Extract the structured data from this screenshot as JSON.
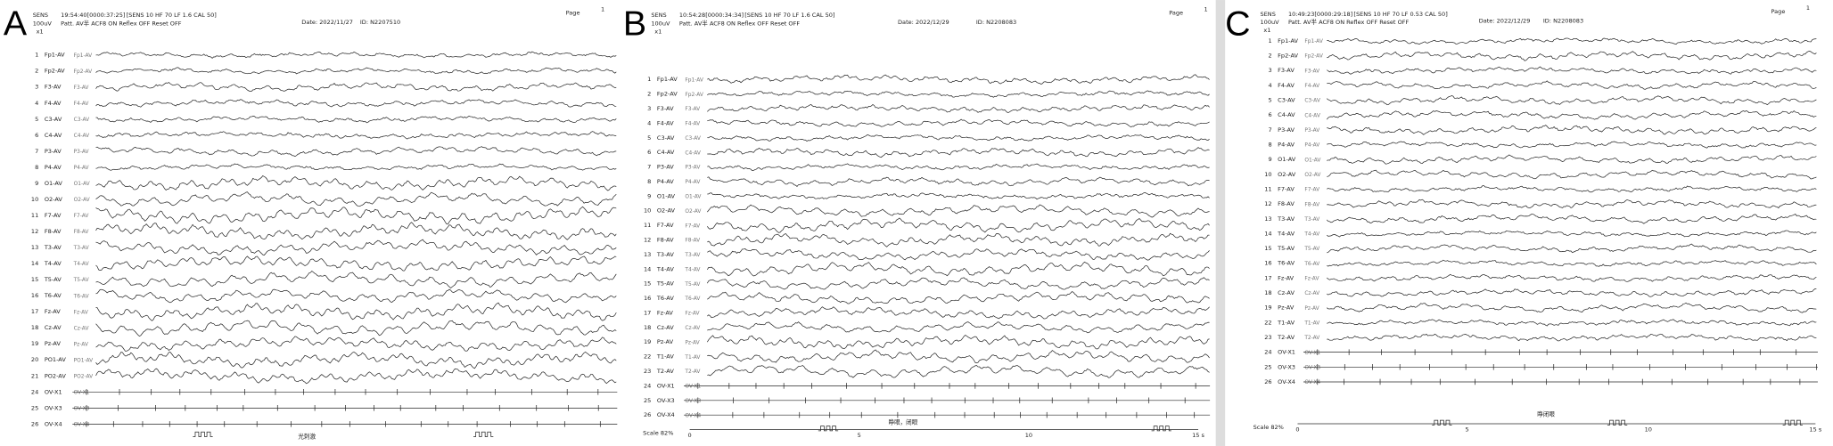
{
  "panels": [
    {
      "letter": "A",
      "header": {
        "sens": "SENS",
        "sens_value": "100uV",
        "gain": "x1",
        "time": "19:54:40[0000:37:25]",
        "settings": "[SENS 10 HF 70 LF 1.6 CAL 50]",
        "mode": "Patt. AV半 ACF8 ON Reflex OFF Reset OFF",
        "date": "Date: 2022/11/27",
        "id": "ID: N2207510",
        "page": "Page",
        "page_no": "1"
      },
      "channels": [
        {
          "no": "1",
          "name": "Fp1-AV"
        },
        {
          "no": "2",
          "name": "Fp2-AV"
        },
        {
          "no": "3",
          "name": "F3-AV"
        },
        {
          "no": "4",
          "name": "F4-AV"
        },
        {
          "no": "5",
          "name": "C3-AV"
        },
        {
          "no": "6",
          "name": "C4-AV"
        },
        {
          "no": "7",
          "name": "P3-AV"
        },
        {
          "no": "8",
          "name": "P4-AV"
        },
        {
          "no": "9",
          "name": "O1-AV"
        },
        {
          "no": "10",
          "name": "O2-AV"
        },
        {
          "no": "11",
          "name": "F7-AV"
        },
        {
          "no": "12",
          "name": "F8-AV"
        },
        {
          "no": "13",
          "name": "T3-AV"
        },
        {
          "no": "14",
          "name": "T4-AV"
        },
        {
          "no": "15",
          "name": "T5-AV"
        },
        {
          "no": "16",
          "name": "T6-AV"
        },
        {
          "no": "17",
          "name": "Fz-AV"
        },
        {
          "no": "18",
          "name": "Cz-AV"
        },
        {
          "no": "19",
          "name": "Pz-AV"
        },
        {
          "no": "20",
          "name": "PO1-AV"
        },
        {
          "no": "21",
          "name": "PO2-AV"
        },
        {
          "no": "24",
          "name": "OV-X1"
        },
        {
          "no": "25",
          "name": "OV-X3"
        },
        {
          "no": "26",
          "name": "OV-X4"
        }
      ],
      "annotation": "光刺激"
    },
    {
      "letter": "B",
      "header": {
        "sens": "SENS",
        "sens_value": "100uV",
        "gain": "x1",
        "time": "10:54:28[0000:34:34]",
        "settings": "[SENS 10 HF 70 LF 1.6 CAL 50]",
        "mode": "Patt. AV半 ACF8 ON Reflex OFF Reset OFF",
        "date": "Date: 2022/12/29",
        "id": "ID: N2208083",
        "page": "Page",
        "page_no": "1"
      },
      "channels": [
        {
          "no": "1",
          "name": "Fp1-AV"
        },
        {
          "no": "2",
          "name": "Fp2-AV"
        },
        {
          "no": "3",
          "name": "F3-AV"
        },
        {
          "no": "4",
          "name": "F4-AV"
        },
        {
          "no": "5",
          "name": "C3-AV"
        },
        {
          "no": "6",
          "name": "C4-AV"
        },
        {
          "no": "7",
          "name": "P3-AV"
        },
        {
          "no": "8",
          "name": "P4-AV"
        },
        {
          "no": "9",
          "name": "O1-AV"
        },
        {
          "no": "10",
          "name": "O2-AV"
        },
        {
          "no": "11",
          "name": "F7-AV"
        },
        {
          "no": "12",
          "name": "F8-AV"
        },
        {
          "no": "13",
          "name": "T3-AV"
        },
        {
          "no": "14",
          "name": "T4-AV"
        },
        {
          "no": "15",
          "name": "T5-AV"
        },
        {
          "no": "16",
          "name": "T6-AV"
        },
        {
          "no": "17",
          "name": "Fz-AV"
        },
        {
          "no": "18",
          "name": "Cz-AV"
        },
        {
          "no": "19",
          "name": "Pz-AV"
        },
        {
          "no": "22",
          "name": "T1-AV"
        },
        {
          "no": "23",
          "name": "T2-AV"
        },
        {
          "no": "24",
          "name": "OV-X1"
        },
        {
          "no": "25",
          "name": "OV-X3"
        },
        {
          "no": "26",
          "name": "OV-X4"
        }
      ],
      "annotation": "睁眼，闭眼",
      "footer": {
        "scale": "Scale 82%",
        "ticks": [
          "0",
          "5",
          "10",
          "15 s"
        ]
      }
    },
    {
      "letter": "C",
      "header": {
        "sens": "SENS",
        "sens_value": "100uV",
        "gain": "x1",
        "time": "10:49:23[0000:29:18]",
        "settings": "[SENS 10 HF 70 LF 0.53 CAL 50]",
        "mode": "Patt. AV半 ACF8 ON Reflex OFF Reset OFF",
        "date": "Date: 2022/12/29",
        "id": "ID: N2208083",
        "page": "Page",
        "page_no": "1"
      },
      "channels": [
        {
          "no": "1",
          "name": "Fp1-AV"
        },
        {
          "no": "2",
          "name": "Fp2-AV"
        },
        {
          "no": "3",
          "name": "F3-AV"
        },
        {
          "no": "4",
          "name": "F4-AV"
        },
        {
          "no": "5",
          "name": "C3-AV"
        },
        {
          "no": "6",
          "name": "C4-AV"
        },
        {
          "no": "7",
          "name": "P3-AV"
        },
        {
          "no": "8",
          "name": "P4-AV"
        },
        {
          "no": "9",
          "name": "O1-AV"
        },
        {
          "no": "10",
          "name": "O2-AV"
        },
        {
          "no": "11",
          "name": "F7-AV"
        },
        {
          "no": "12",
          "name": "F8-AV"
        },
        {
          "no": "13",
          "name": "T3-AV"
        },
        {
          "no": "14",
          "name": "T4-AV"
        },
        {
          "no": "15",
          "name": "T5-AV"
        },
        {
          "no": "16",
          "name": "T6-AV"
        },
        {
          "no": "17",
          "name": "Fz-AV"
        },
        {
          "no": "18",
          "name": "Cz-AV"
        },
        {
          "no": "19",
          "name": "Pz-AV"
        },
        {
          "no": "22",
          "name": "T1-AV"
        },
        {
          "no": "23",
          "name": "T2-AV"
        },
        {
          "no": "24",
          "name": "OV-X1"
        },
        {
          "no": "25",
          "name": "OV-X3"
        },
        {
          "no": "26",
          "name": "OV-X4"
        }
      ],
      "annotation": "睁闭眼",
      "footer": {
        "scale": "Scale 82%",
        "ticks": [
          "0",
          "5",
          "10",
          "15 s"
        ]
      }
    }
  ]
}
